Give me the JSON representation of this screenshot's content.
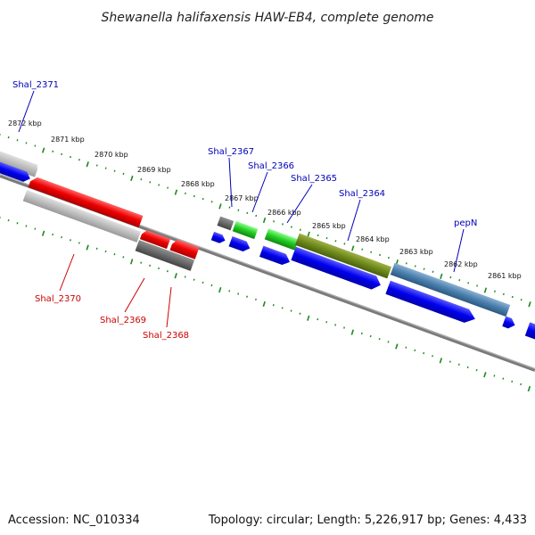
{
  "title": "Shewanella halifaxensis HAW-EB4, complete genome",
  "footer": {
    "accession": "Accession: NC_010334",
    "topology": "Topology: circular; Length: 5,226,917 bp; Genes: 4,433"
  },
  "colors": {
    "forward_label": "#0000bb",
    "reverse_label": "#cc0000",
    "tick": "#1a8a1a",
    "backbone": "#777777"
  },
  "ruler": [
    {
      "label": "2872 kbp",
      "kbp": 2872
    },
    {
      "label": "2871 kbp",
      "kbp": 2871
    },
    {
      "label": "2870 kbp",
      "kbp": 2870
    },
    {
      "label": "2869 kbp",
      "kbp": 2869
    },
    {
      "label": "2868 kbp",
      "kbp": 2868
    },
    {
      "label": "2867 kbp",
      "kbp": 2867
    },
    {
      "label": "2866 kbp",
      "kbp": 2866
    },
    {
      "label": "2865 kbp",
      "kbp": 2865
    },
    {
      "label": "2864 kbp",
      "kbp": 2864
    },
    {
      "label": "2863 kbp",
      "kbp": 2863
    },
    {
      "label": "2862 kbp",
      "kbp": 2862
    },
    {
      "label": "2861 kbp",
      "kbp": 2861
    }
  ],
  "gene_labels": {
    "forward": [
      {
        "name": "Shal_2371",
        "color": "#0000bb"
      },
      {
        "name": "Shal_2367",
        "color": "#0000bb"
      },
      {
        "name": "Shal_2366",
        "color": "#0000bb"
      },
      {
        "name": "Shal_2365",
        "color": "#0000bb"
      },
      {
        "name": "Shal_2364",
        "color": "#0000bb"
      },
      {
        "name": "pepN",
        "color": "#0000bb"
      }
    ],
    "reverse": [
      {
        "name": "Shal_2370",
        "color": "#cc0000"
      },
      {
        "name": "Shal_2369",
        "color": "#cc0000"
      },
      {
        "name": "Shal_2368",
        "color": "#cc0000"
      }
    ]
  }
}
